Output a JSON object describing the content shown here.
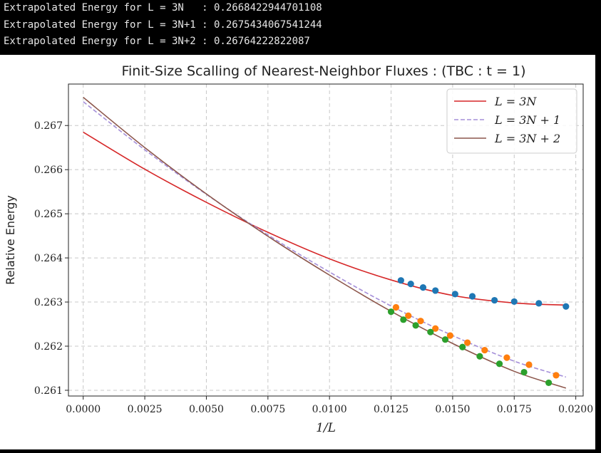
{
  "console": {
    "lines": [
      "Extrapolated Energy for L = 3N   : 0.2668422944701108",
      "Extrapolated Energy for L = 3N+1 : 0.2675434067541244",
      "Extrapolated Energy for L = 3N+2 : 0.26764222822087"
    ]
  },
  "chart_data": {
    "type": "line",
    "title": "Finit-Size Scalling of Nearest-Neighbor Fluxes : (TBC : t = 1)",
    "xlabel": "1/L",
    "ylabel": "Relative Energy",
    "xlim": [
      -0.0006,
      0.0203
    ],
    "ylim": [
      0.26087,
      0.26794
    ],
    "xticks": [
      "0.0000",
      "0.0025",
      "0.0050",
      "0.0075",
      "0.0100",
      "0.0125",
      "0.0150",
      "0.0175",
      "0.0200"
    ],
    "xtick_values": [
      0,
      0.0025,
      0.005,
      0.0075,
      0.01,
      0.0125,
      0.015,
      0.0175,
      0.02
    ],
    "yticks": [
      "0.261",
      "0.262",
      "0.263",
      "0.264",
      "0.265",
      "0.266",
      "0.267"
    ],
    "ytick_values": [
      0.261,
      0.262,
      0.263,
      0.264,
      0.265,
      0.266,
      0.267
    ],
    "grid": true,
    "legend_position": "top-right",
    "series": [
      {
        "name": "L = 3N",
        "color": "#d62728",
        "dash": "solid",
        "marker_color": "#1f77b4",
        "fit_x": [
          0,
          0.0025,
          0.005,
          0.0075,
          0.01,
          0.0125,
          0.015,
          0.0175,
          0.0196
        ],
        "fit_y": [
          0.26685,
          0.26601,
          0.26526,
          0.26458,
          0.26398,
          0.2635,
          0.26315,
          0.26298,
          0.26293
        ],
        "points_x": [
          0.0129,
          0.0133,
          0.0138,
          0.0143,
          0.0151,
          0.0158,
          0.0167,
          0.0175,
          0.0185,
          0.0196
        ],
        "points_y": [
          0.26349,
          0.26341,
          0.26333,
          0.26326,
          0.26318,
          0.26313,
          0.26304,
          0.26301,
          0.26297,
          0.2629
        ]
      },
      {
        "name": "L = 3N + 1",
        "color": "#a58fd9",
        "dash": "dashed",
        "marker_color": "#ff7f0e",
        "fit_x": [
          0,
          0.0025,
          0.005,
          0.0075,
          0.01,
          0.0125,
          0.015,
          0.0175,
          0.0196
        ],
        "fit_y": [
          0.26754,
          0.26645,
          0.26544,
          0.26452,
          0.26368,
          0.26291,
          0.26224,
          0.26166,
          0.2613
        ],
        "points_x": [
          0.0127,
          0.0132,
          0.0137,
          0.0143,
          0.0149,
          0.0156,
          0.0163,
          0.0172,
          0.0181,
          0.0192
        ],
        "points_y": [
          0.26288,
          0.26269,
          0.26257,
          0.2624,
          0.26224,
          0.26208,
          0.26191,
          0.26174,
          0.26158,
          0.26134
        ]
      },
      {
        "name": "L = 3N + 2",
        "color": "#8c564b",
        "dash": "solid",
        "marker_color": "#2ca02c",
        "fit_x": [
          0,
          0.0025,
          0.005,
          0.0075,
          0.01,
          0.0125,
          0.015,
          0.0175,
          0.0196
        ],
        "fit_y": [
          0.26764,
          0.2665,
          0.26545,
          0.26449,
          0.26361,
          0.26279,
          0.26206,
          0.26143,
          0.26105
        ],
        "points_x": [
          0.0125,
          0.013,
          0.0135,
          0.0141,
          0.0147,
          0.0154,
          0.0161,
          0.0169,
          0.0179,
          0.0189
        ],
        "points_y": [
          0.26278,
          0.2626,
          0.26247,
          0.26232,
          0.26215,
          0.26198,
          0.26177,
          0.2616,
          0.26141,
          0.26117
        ]
      }
    ]
  }
}
